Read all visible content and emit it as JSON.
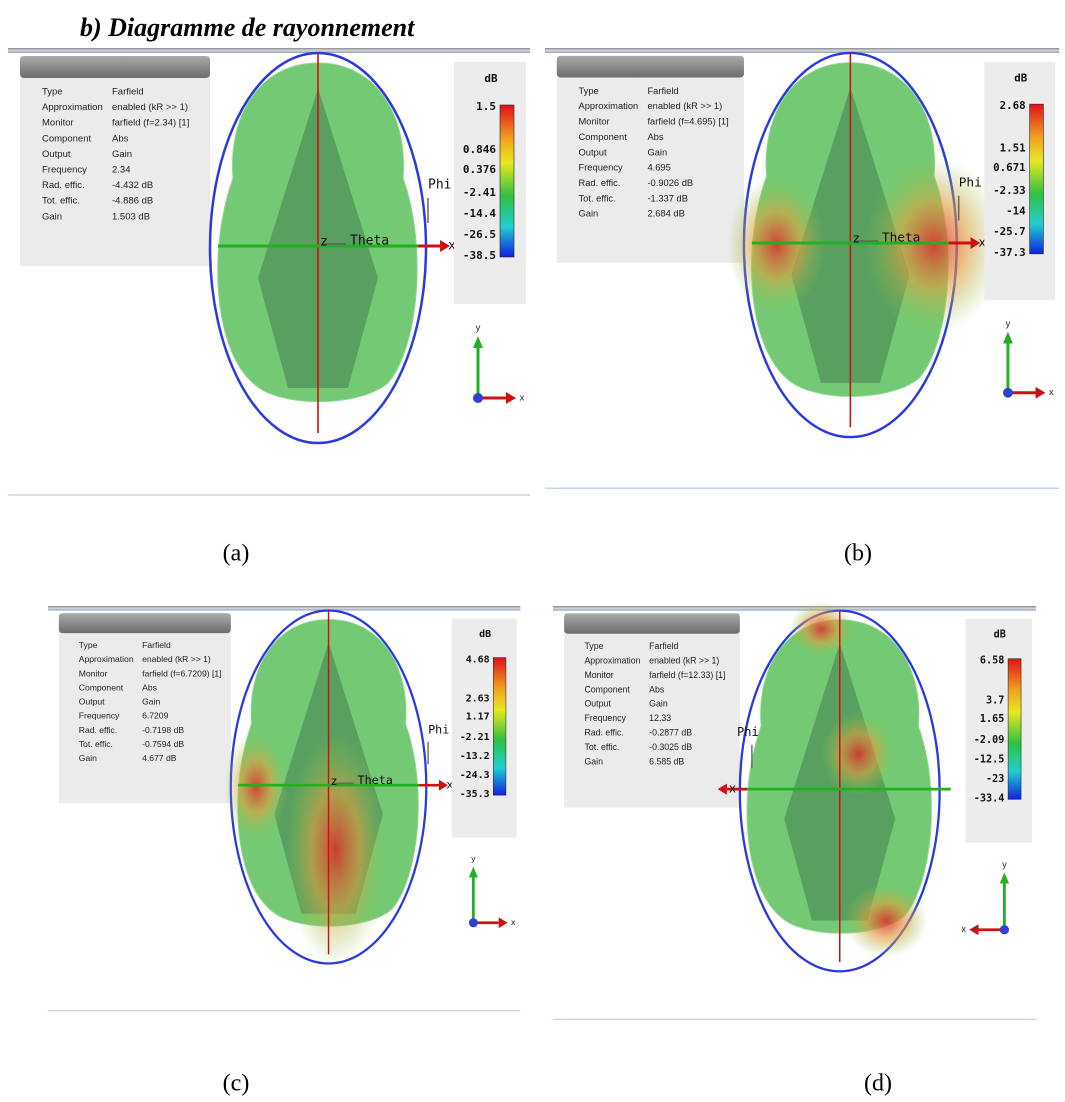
{
  "header": {
    "title": "b)  Diagramme de rayonnement"
  },
  "panels": [
    {
      "caption": "(a)",
      "info": [
        [
          "Type",
          "Farfield"
        ],
        [
          "Approximation",
          "enabled (kR >> 1)"
        ],
        [
          "Monitor",
          "farfield (f=2.34) [1]"
        ],
        [
          "Component",
          "Abs"
        ],
        [
          "Output",
          "Gain"
        ],
        [
          "Frequency",
          "2.34"
        ],
        [
          "Rad. effic.",
          "-4.432 dB"
        ],
        [
          "Tot. effic.",
          "-4.886 dB"
        ],
        [
          "Gain",
          "1.503 dB"
        ]
      ],
      "scale": {
        "unit": "dB",
        "ticks": [
          "1.5",
          "0.846",
          "0.376",
          "-2.41",
          "-14.4",
          "-26.5",
          "-38.5"
        ]
      },
      "axis_labels": {
        "phi": "Phi",
        "theta": "Theta",
        "x": "x",
        "z": "z"
      },
      "triad": {
        "y": "y",
        "x": "x"
      }
    },
    {
      "caption": "(b)",
      "info": [
        [
          "Type",
          "Farfield"
        ],
        [
          "Approximation",
          "enabled (kR >> 1)"
        ],
        [
          "Monitor",
          "farfield (f=4.695) [1]"
        ],
        [
          "Component",
          "Abs"
        ],
        [
          "Output",
          "Gain"
        ],
        [
          "Frequency",
          "4.695"
        ],
        [
          "Rad. effic.",
          "-0.9026 dB"
        ],
        [
          "Tot. effic.",
          "-1.337 dB"
        ],
        [
          "Gain",
          "2.684 dB"
        ]
      ],
      "scale": {
        "unit": "dB",
        "ticks": [
          "2.68",
          "1.51",
          "0.671",
          "-2.33",
          "-14",
          "-25.7",
          "-37.3"
        ]
      },
      "axis_labels": {
        "phi": "Phi",
        "theta": "Theta",
        "x": "x",
        "z": "z"
      },
      "triad": {
        "y": "y",
        "x": "x"
      }
    },
    {
      "caption": "(c)",
      "info": [
        [
          "Type",
          "Farfield"
        ],
        [
          "Approximation",
          "enabled (kR >> 1)"
        ],
        [
          "Monitor",
          "farfield (f=6.7209) [1]"
        ],
        [
          "Component",
          "Abs"
        ],
        [
          "Output",
          "Gain"
        ],
        [
          "Frequency",
          "6.7209"
        ],
        [
          "Rad. effic.",
          "-0.7198 dB"
        ],
        [
          "Tot. effic.",
          "-0.7594 dB"
        ],
        [
          "Gain",
          "4.677 dB"
        ]
      ],
      "scale": {
        "unit": "dB",
        "ticks": [
          "4.68",
          "2.63",
          "1.17",
          "-2.21",
          "-13.2",
          "-24.3",
          "-35.3"
        ]
      },
      "axis_labels": {
        "phi": "Phi",
        "theta": "Theta",
        "x": "x",
        "z": "z"
      },
      "triad": {
        "y": "y",
        "x": "x"
      }
    },
    {
      "caption": "(d)",
      "info": [
        [
          "Type",
          "Farfield"
        ],
        [
          "Approximation",
          "enabled (kR >> 1)"
        ],
        [
          "Monitor",
          "farfield (f=12.33) [1]"
        ],
        [
          "Component",
          "Abs"
        ],
        [
          "Output",
          "Gain"
        ],
        [
          "Frequency",
          "12.33"
        ],
        [
          "Rad. effic.",
          "-0.2877 dB"
        ],
        [
          "Tot. effic.",
          "-0.3025 dB"
        ],
        [
          "Gain",
          "6.585 dB"
        ]
      ],
      "scale": {
        "unit": "dB",
        "ticks": [
          "6.58",
          "3.7",
          "1.65",
          "-2.09",
          "-12.5",
          "-23",
          "-33.4"
        ]
      },
      "axis_labels": {
        "phi": "Phi",
        "x": "x"
      },
      "triad": {
        "y": "y",
        "x": "x"
      }
    }
  ]
}
